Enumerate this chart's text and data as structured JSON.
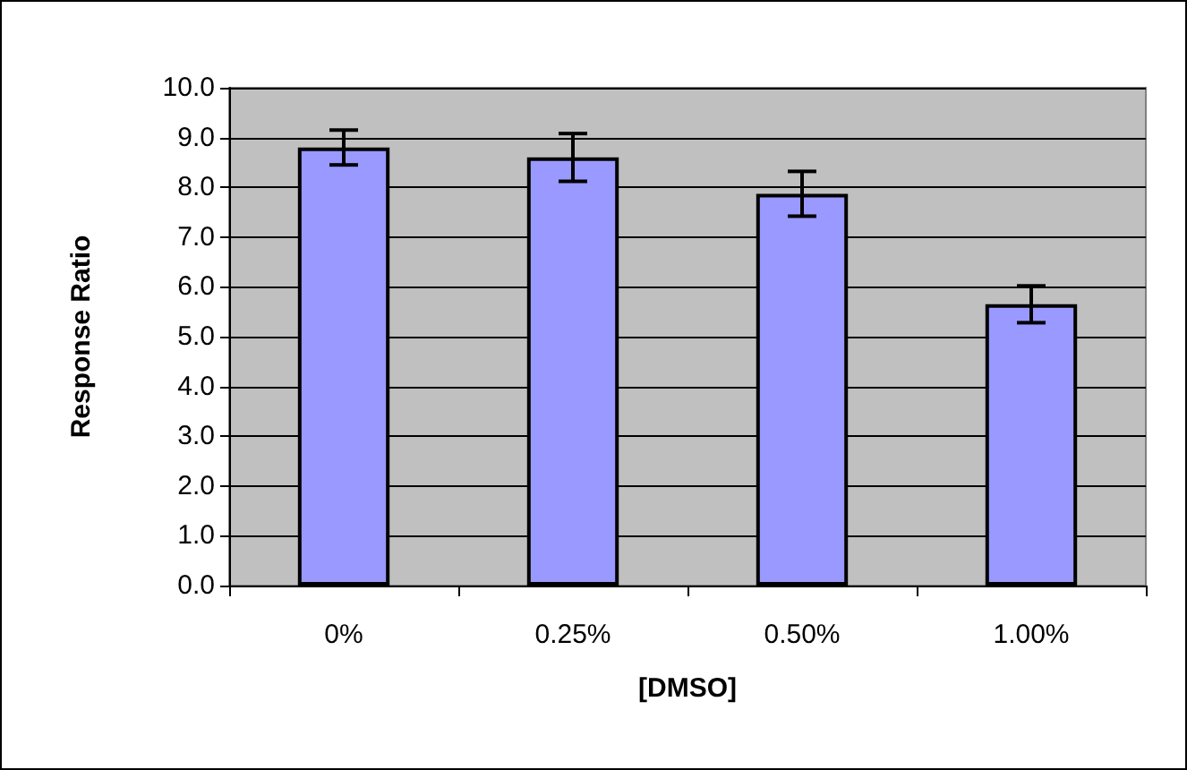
{
  "chart_data": {
    "type": "bar",
    "xlabel": "[DMSO]",
    "ylabel": "Response Ratio",
    "categories": [
      "0%",
      "0.25%",
      "0.50%",
      "1.00%"
    ],
    "values": [
      8.8,
      8.6,
      7.87,
      5.65
    ],
    "errors": [
      0.35,
      0.48,
      0.45,
      0.37
    ],
    "color": "#9999ff",
    "ylim": [
      0,
      10
    ],
    "yticks": [
      {
        "value": 0,
        "label": "0.0"
      },
      {
        "value": 1,
        "label": "1.0"
      },
      {
        "value": 2,
        "label": "2.0"
      },
      {
        "value": 3,
        "label": "3.0"
      },
      {
        "value": 4,
        "label": "4.0"
      },
      {
        "value": 5,
        "label": "5.0"
      },
      {
        "value": 6,
        "label": "6.0"
      },
      {
        "value": 7,
        "label": "7.0"
      },
      {
        "value": 8,
        "label": "8.0"
      },
      {
        "value": 9,
        "label": "9.0"
      },
      {
        "value": 10,
        "label": "10.0"
      }
    ],
    "grid": "y"
  }
}
